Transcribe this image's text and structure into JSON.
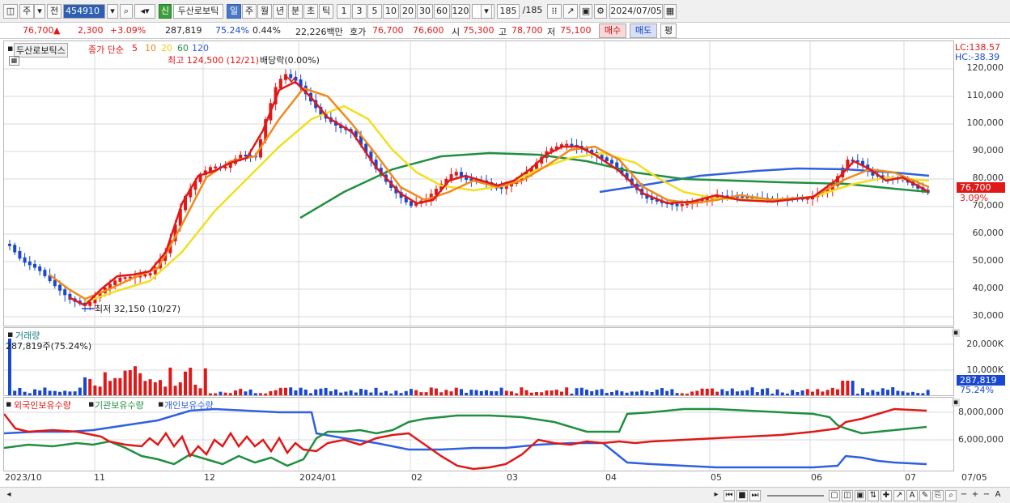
{
  "toolbar": {
    "market": "주",
    "prev": "전",
    "code": "454910",
    "new_badge": "신",
    "stock_name": "두산로보틱",
    "periods": [
      "일",
      "주",
      "월",
      "년",
      "분",
      "초",
      "틱"
    ],
    "intervals": [
      "1",
      "3",
      "5",
      "10",
      "20",
      "30",
      "60",
      "120"
    ],
    "count": "185",
    "total": "/185",
    "date": "2024/07/05"
  },
  "info": {
    "price": "76,700",
    "change_arrow": "▲",
    "change": "2,300",
    "change_pct": "+3.09%",
    "volume": "287,819",
    "vol_ratio": "75.24%",
    "turnover": "0.44%",
    "amount": "22,226백만",
    "ask_label": "호가",
    "ask1": "76,700",
    "ask2": "76,600",
    "open_label": "시",
    "open": "75,300",
    "high_label": "고",
    "high": "78,700",
    "low_label": "저",
    "low": "75,100",
    "buy": "매수",
    "sell": "매도",
    "eval": "평"
  },
  "price_panel": {
    "title": "두산로보틱스",
    "ma_label": "종가 단순",
    "ma_periods": [
      "5",
      "10",
      "20",
      "60",
      "120"
    ],
    "ma_colors": [
      "#e01818",
      "#f08a1a",
      "#f0e020",
      "#209040",
      "#3060e0"
    ],
    "high_note": "최고 124,500 (12/21)",
    "dividend_note": "배당락(0.00%)",
    "low_note": "최저 32,150 (10/27)",
    "lc": "LC:138.57",
    "hc": "HC:-38.39",
    "last_price": "76,700",
    "last_pct": "3.09%",
    "yticks": [
      "120,000",
      "110,000",
      "100,000",
      "90,000",
      "80,000",
      "70,000",
      "60,000",
      "50,000",
      "40,000",
      "30,000"
    ]
  },
  "volume_panel": {
    "title": "거래량",
    "value": "287,819주(75.24%)",
    "yticks": [
      "20,000K",
      "10,000K"
    ],
    "last": "287,819",
    "last_pct": "75.24%"
  },
  "holding_panel": {
    "legend": [
      "외국인보유수량",
      "기관보유수량",
      "개인보유수량"
    ],
    "colors": [
      "#e01818",
      "#209040",
      "#3060e0"
    ],
    "yticks": [
      "8,000,000",
      "6,000,000"
    ]
  },
  "xaxis": [
    "2023/10",
    "11",
    "12",
    "2024/01",
    "02",
    "03",
    "04",
    "05",
    "06",
    "07",
    "07/05"
  ]
}
